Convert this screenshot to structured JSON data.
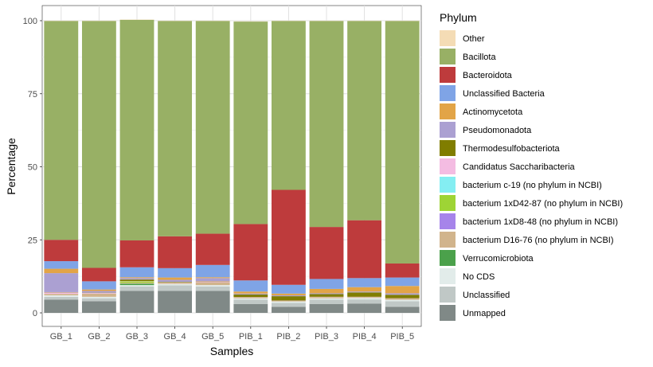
{
  "chart_data": {
    "type": "bar",
    "stacked": true,
    "xlabel": "Samples",
    "ylabel": "Percentage",
    "ylim": [
      0,
      100
    ],
    "y_ticks": [
      "0",
      "25",
      "50",
      "75",
      "100"
    ],
    "grid": true,
    "legend_position": "right",
    "legend_title": "Phylum",
    "categories": [
      "GB_1",
      "GB_2",
      "GB_3",
      "GB_4",
      "GB_5",
      "PIB_1",
      "PIB_2",
      "PIB_3",
      "PIB_4",
      "PIB_5"
    ],
    "series": [
      {
        "name": "Other",
        "color": "#f4dcb5",
        "values": [
          0.1,
          0.1,
          0.1,
          0.1,
          0.1,
          0.1,
          0.1,
          0.1,
          0.1,
          0.1
        ]
      },
      {
        "name": "Bacillota",
        "color": "#98b065",
        "values": [
          74.9,
          84.5,
          75.5,
          73.7,
          72.8,
          69.3,
          57.8,
          70.5,
          68.2,
          83.0
        ]
      },
      {
        "name": "Bacteroidota",
        "color": "#be3b3c",
        "values": [
          7.3,
          4.6,
          9.2,
          10.9,
          10.7,
          19.3,
          32.5,
          17.8,
          19.8,
          4.8
        ]
      },
      {
        "name": "Unclassified Bacteria",
        "color": "#7fa4e6",
        "values": [
          2.6,
          2.8,
          3.4,
          3.2,
          4.2,
          3.8,
          3.0,
          3.4,
          3.1,
          2.9
        ]
      },
      {
        "name": "Actinomycetota",
        "color": "#e2a447",
        "values": [
          1.5,
          0.5,
          0.3,
          0.8,
          0.3,
          0.7,
          0.6,
          1.5,
          1.5,
          2.5
        ]
      },
      {
        "name": "Pseudomonadota",
        "color": "#aba0d2",
        "values": [
          6.5,
          0.6,
          0.5,
          0.7,
          1.0,
          0.3,
          0.3,
          0.3,
          0.3,
          0.5
        ]
      },
      {
        "name": "Thermodesulfobacteriota",
        "color": "#807d00",
        "values": [
          0.1,
          0.1,
          0.5,
          0.2,
          0.1,
          0.9,
          1.5,
          0.9,
          1.5,
          1.2
        ]
      },
      {
        "name": "Candidatus Saccharibacteria",
        "color": "#f4bce2",
        "values": [
          0.5,
          0.2,
          0.1,
          0.1,
          0.3,
          0.1,
          0.1,
          0.1,
          0.1,
          0.1
        ]
      },
      {
        "name": "bacterium c-19 (no phylum in NCBI)",
        "color": "#84eef2",
        "values": [
          0.0,
          0.0,
          0.0,
          0.0,
          0.0,
          0.0,
          0.0,
          0.0,
          0.0,
          0.0
        ]
      },
      {
        "name": "bacterium 1xD42-87 (no phylum in NCBI)",
        "color": "#9ed435",
        "values": [
          0.0,
          0.0,
          0.5,
          0.0,
          0.0,
          0.0,
          0.0,
          0.0,
          0.0,
          0.0
        ]
      },
      {
        "name": "bacterium 1xD8-48 (no phylum in NCBI)",
        "color": "#a684ea",
        "values": [
          0.0,
          0.0,
          0.0,
          0.0,
          0.0,
          0.0,
          0.0,
          0.0,
          0.0,
          0.0
        ]
      },
      {
        "name": "bacterium D16-76 (no phylum in NCBI)",
        "color": "#d1b48c",
        "values": [
          0.5,
          1.1,
          0.3,
          0.4,
          1.0,
          0.3,
          0.2,
          0.4,
          0.3,
          0.4
        ]
      },
      {
        "name": "Verrucomicrobiota",
        "color": "#4ba14b",
        "values": [
          0.0,
          0.0,
          0.5,
          0.0,
          0.0,
          0.0,
          0.0,
          0.0,
          0.0,
          0.0
        ]
      },
      {
        "name": "No CDS",
        "color": "#e2ecea",
        "values": [
          0.5,
          0.5,
          0.5,
          0.5,
          0.5,
          0.5,
          0.5,
          0.5,
          0.5,
          0.5
        ]
      },
      {
        "name": "Unclassified",
        "color": "#c0c8c6",
        "values": [
          1.0,
          1.0,
          1.5,
          1.9,
          1.5,
          1.5,
          1.3,
          1.5,
          1.4,
          1.9
        ]
      },
      {
        "name": "Unmapped",
        "color": "#808987",
        "values": [
          4.5,
          4.0,
          7.5,
          7.5,
          7.5,
          3.0,
          2.1,
          3.0,
          3.2,
          2.1
        ]
      }
    ]
  }
}
